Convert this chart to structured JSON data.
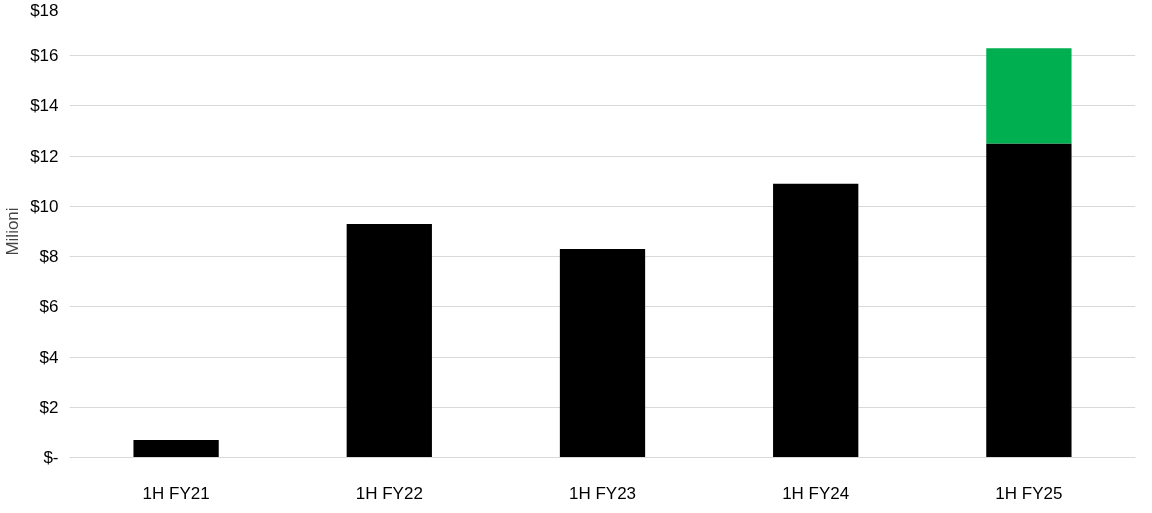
{
  "chart_data": {
    "type": "bar",
    "stacked": true,
    "ylabel": "Milioni",
    "categories": [
      "1H FY21",
      "1H FY22",
      "1H FY23",
      "1H FY24",
      "1H FY25"
    ],
    "series": [
      {
        "color": "#000000",
        "values": [
          0.7,
          9.3,
          8.3,
          10.9,
          12.5
        ]
      },
      {
        "color": "#00b050",
        "values": [
          null,
          null,
          null,
          null,
          3.8
        ]
      }
    ],
    "ylim": [
      0,
      18
    ],
    "yticks": [
      {
        "value": 0,
        "label": "$-"
      },
      {
        "value": 2,
        "label": "$2"
      },
      {
        "value": 4,
        "label": "$4"
      },
      {
        "value": 6,
        "label": "$6"
      },
      {
        "value": 8,
        "label": "$8"
      },
      {
        "value": 10,
        "label": "$10"
      },
      {
        "value": 12,
        "label": "$12"
      },
      {
        "value": 14,
        "label": "$14"
      },
      {
        "value": 16,
        "label": "$16"
      },
      {
        "value": 18,
        "label": "$18"
      }
    ],
    "grid": "y"
  }
}
